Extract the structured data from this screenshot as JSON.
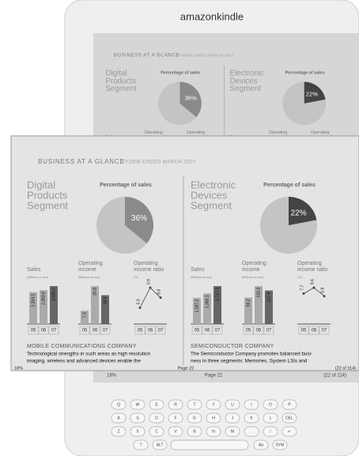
{
  "device": {
    "brand": "amazonkindle"
  },
  "page": {
    "header": {
      "title": "BUSINESS AT A GLANCE",
      "subtitle": "FY2006 ENDED MARCH 2007"
    },
    "segments": [
      {
        "title": [
          "Digital",
          "Products",
          "Segment"
        ],
        "pie_title": "Percentage of sales",
        "share": {
          "value": 36,
          "label": "36%"
        },
        "slice_color": "#8a8a8a",
        "rest_color": "#c4c4c4",
        "charts": [
          {
            "type": "bar",
            "title": [
              "Sales"
            ],
            "unit": "(Billions of yen)",
            "categories": [
              "05",
              "06",
              "07"
            ],
            "values": [
              2254.2,
              2393.8,
              2685.5
            ],
            "value_labels": [
              "2,254.2",
              "2,393.8",
              "2,685.5"
            ]
          },
          {
            "type": "bar",
            "title": [
              "Operating",
              "income"
            ],
            "unit": "(Billions of yen)",
            "categories": [
              "05",
              "06",
              "07"
            ],
            "values": [
              7.3,
              20.8,
              15.8
            ]
          },
          {
            "type": "line",
            "title": [
              "Operating",
              "income ratio"
            ],
            "unit": "(%)",
            "categories": [
              "05",
              "06",
              "07"
            ],
            "values": [
              0.3,
              0.9,
              0.6
            ]
          }
        ]
      },
      {
        "title": [
          "Electronic",
          "Devices",
          "Segment"
        ],
        "pie_title": "Percentage of sales",
        "share": {
          "value": 22,
          "label": "22%"
        },
        "slice_color": "#444444",
        "rest_color": "#c4c4c4",
        "charts": [
          {
            "type": "bar",
            "title": [
              "Sales"
            ],
            "unit": "(Billions of yen)",
            "categories": [
              "05",
              "06",
              "07"
            ],
            "values": [
              1187.2,
              1380.1,
              1717.3
            ],
            "value_labels": [
              "1,187.2",
              "1,380.1",
              "1,717.3"
            ]
          },
          {
            "type": "bar",
            "title": [
              "Operating",
              "income"
            ],
            "unit": "(Billions of yen)",
            "categories": [
              "05",
              "06",
              "07"
            ],
            "values": [
              93.2,
              133.3,
              117.8
            ]
          },
          {
            "type": "line",
            "title": [
              "Operating",
              "income ratio"
            ],
            "unit": "(%)",
            "categories": [
              "05",
              "06",
              "07"
            ],
            "values": [
              7.7,
              9.6,
              6.9
            ]
          }
        ]
      }
    ],
    "sections": [
      {
        "title": "MOBILE COMMUNICATIONS COMPANY",
        "lines": [
          "Technological strengths in such areas as high resolution",
          "imaging, wireless and advanced devices enable the"
        ]
      },
      {
        "title": "SEMICONDUCTOR COMPANY",
        "lines": [
          "The Semiconductor Company promotes balanced busi-",
          "ness in three segments: Memories, System LSIs and"
        ]
      }
    ],
    "footer": {
      "progress": "18%",
      "page": "Page 22",
      "location": "(22 of 114)"
    }
  },
  "keyboard": {
    "rows": [
      [
        "Q",
        "W",
        "E",
        "R",
        "T",
        "Y",
        "U",
        "I",
        "O",
        "P"
      ],
      [
        "A",
        "S",
        "D",
        "F",
        "G",
        "H",
        "J",
        "K",
        "L",
        "DEL"
      ],
      [
        "Z",
        "X",
        "C",
        "V",
        "B",
        "N",
        "M",
        ".",
        "/",
        "↵"
      ],
      [
        "?",
        "ALT",
        "Aa",
        "SYM"
      ]
    ]
  }
}
